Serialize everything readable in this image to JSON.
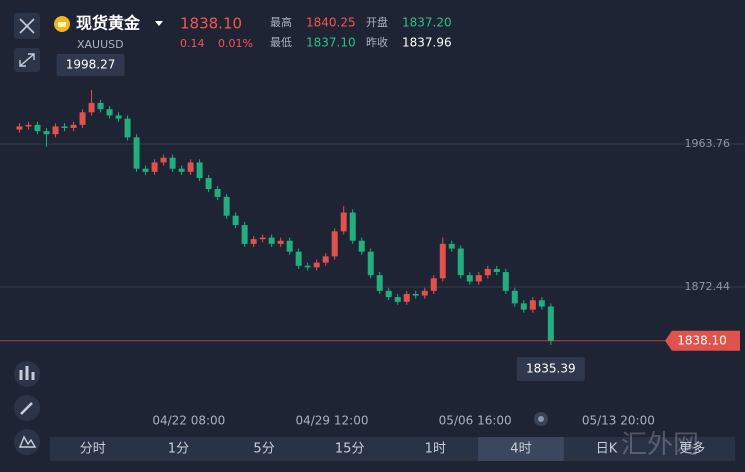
{
  "header": {
    "name": "现货黄金",
    "symbol": "XAUUSD",
    "price": "1838.10",
    "change": "0.14",
    "change_pct": "0.01%",
    "high_label": "最高",
    "high": "1840.25",
    "open_label": "开盘",
    "open": "1837.20",
    "low_label": "最低",
    "low": "1837.10",
    "prev_close_label": "昨收",
    "prev_close": "1837.96"
  },
  "tabs": [
    "分时",
    "1分",
    "5分",
    "15分",
    "1时",
    "4时",
    "日K",
    "更多"
  ],
  "selected_tab": 5,
  "watermark": "汇外网",
  "chart_data": {
    "type": "candlestick",
    "open": [
      1973,
      1975,
      1976,
      1972,
      1970,
      1975,
      1974,
      1976,
      1984,
      1990,
      1986,
      1982,
      1980,
      1968,
      1948,
      1946,
      1952,
      1955,
      1948,
      1946,
      1952,
      1942,
      1935,
      1930,
      1918,
      1912,
      1900,
      1903,
      1904,
      1900,
      1902,
      1895,
      1886,
      1885,
      1888,
      1892,
      1908,
      1920,
      1902,
      1895,
      1880,
      1870,
      1866,
      1863,
      1868,
      1867,
      1870,
      1878,
      1900,
      1897,
      1880,
      1876,
      1880,
      1884,
      1882,
      1870,
      1862,
      1858,
      1864,
      1860
    ],
    "high": [
      1977,
      1978,
      1978,
      1974,
      1977,
      1977,
      1978,
      1986,
      1998.27,
      1992,
      1988,
      1984,
      1982,
      1970,
      1950,
      1954,
      1957,
      1957,
      1950,
      1954,
      1954,
      1944,
      1937,
      1932,
      1920,
      1914,
      1905,
      1906,
      1906,
      1904,
      1904,
      1897,
      1888,
      1890,
      1894,
      1910,
      1924,
      1922,
      1904,
      1897,
      1882,
      1872,
      1868,
      1870,
      1870,
      1872,
      1880,
      1904,
      1902,
      1899,
      1882,
      1882,
      1886,
      1886,
      1884,
      1872,
      1864,
      1866,
      1866,
      1862
    ],
    "low": [
      1971,
      1973,
      1970,
      1962,
      1968,
      1972,
      1972,
      1974,
      1982,
      1984,
      1980,
      1978,
      1966,
      1946,
      1944,
      1944,
      1950,
      1946,
      1944,
      1944,
      1940,
      1933,
      1928,
      1916,
      1910,
      1898,
      1898,
      1901,
      1898,
      1898,
      1893,
      1884,
      1883,
      1883,
      1886,
      1890,
      1906,
      1900,
      1893,
      1878,
      1868,
      1864,
      1861,
      1861,
      1865,
      1865,
      1868,
      1876,
      1895,
      1878,
      1874,
      1874,
      1878,
      1880,
      1868,
      1860,
      1856,
      1856,
      1858,
      1835.39
    ],
    "close": [
      1975,
      1976,
      1972,
      1970,
      1975,
      1974,
      1976,
      1984,
      1990,
      1986,
      1982,
      1980,
      1968,
      1948,
      1946,
      1952,
      1955,
      1948,
      1946,
      1952,
      1942,
      1935,
      1930,
      1918,
      1912,
      1900,
      1903,
      1904,
      1900,
      1902,
      1895,
      1886,
      1885,
      1888,
      1892,
      1908,
      1920,
      1902,
      1895,
      1880,
      1870,
      1866,
      1863,
      1868,
      1867,
      1870,
      1878,
      1900,
      1897,
      1880,
      1876,
      1880,
      1884,
      1882,
      1870,
      1862,
      1858,
      1864,
      1860,
      1838.1
    ],
    "up_color": "#e0524b",
    "down_color": "#22ae7e",
    "xlim": [
      0,
      73.4
    ],
    "xticks": [
      {
        "value": 19.3,
        "label": "04/22 08:00"
      },
      {
        "value": 35.2,
        "label": "04/29 12:00"
      },
      {
        "value": 51.1,
        "label": "05/06 16:00"
      },
      {
        "value": 67,
        "label": "05/13 20:00"
      }
    ],
    "ylim": [
      1797.1,
      2020.6
    ],
    "yticks": [
      1963.76,
      1872.44
    ],
    "grid": true,
    "last_price": {
      "value": 1838.1,
      "label": "1838.10"
    }
  }
}
